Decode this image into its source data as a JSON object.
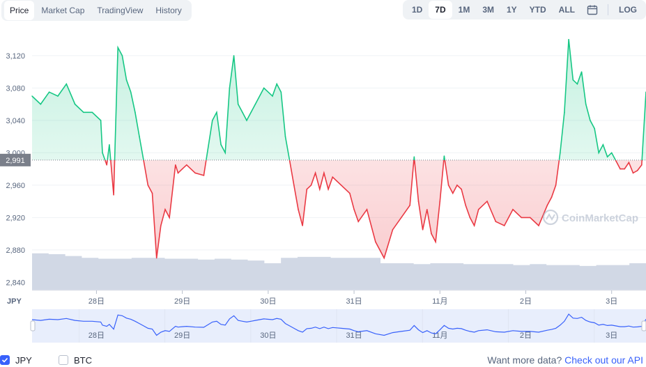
{
  "tabs": [
    "Price",
    "Market Cap",
    "TradingView",
    "History"
  ],
  "active_tab": "Price",
  "ranges": [
    "1D",
    "7D",
    "1M",
    "3M",
    "1Y",
    "YTD",
    "ALL"
  ],
  "active_range": "7D",
  "log_label": "LOG",
  "currency_label": "JPY",
  "current_price_label": "2,991",
  "watermark": "CoinMarketCap",
  "legend": [
    {
      "label": "JPY",
      "checked": true
    },
    {
      "label": "BTC",
      "checked": false
    }
  ],
  "footer": {
    "text": "Want more data?",
    "link": "Check out our API"
  },
  "colors": {
    "up": "#16c784",
    "down": "#ea3943",
    "volume": "#cfd6e4",
    "nav_line": "#3861fb",
    "nav_fill": "#e8eefc"
  },
  "chart_data": {
    "type": "line",
    "baseline": 2991,
    "ylim": [
      2830,
      3150
    ],
    "y_ticks": [
      2840,
      2880,
      2920,
      2960,
      3000,
      3040,
      3080,
      3120
    ],
    "y_tick_labels": [
      "2,840",
      "2,880",
      "2,920",
      "2,960",
      "3,000",
      "3,040",
      "3,080",
      "3,120"
    ],
    "x_tick_labels": [
      "28日",
      "29日",
      "30日",
      "31日",
      "11月",
      "2日",
      "3日"
    ],
    "x_tick_positions": [
      0.75,
      1.75,
      2.75,
      3.75,
      4.75,
      5.75,
      6.75
    ],
    "xlim": [
      0,
      7.15
    ],
    "series": [
      {
        "x": [
          0,
          0.1,
          0.2,
          0.3,
          0.4,
          0.5,
          0.6,
          0.7,
          0.8,
          0.82,
          0.87,
          0.9,
          0.95,
          1.0,
          1.05,
          1.1,
          1.15,
          1.2,
          1.25,
          1.3,
          1.35,
          1.4,
          1.45,
          1.5,
          1.55,
          1.6,
          1.67,
          1.7,
          1.75,
          1.8,
          1.9,
          2.0,
          2.1,
          2.15,
          2.2,
          2.25,
          2.3,
          2.35,
          2.4,
          2.45,
          2.5,
          2.55,
          2.6,
          2.7,
          2.8,
          2.85,
          2.9,
          2.95,
          3.0,
          3.05,
          3.1,
          3.15,
          3.2,
          3.25,
          3.3,
          3.35,
          3.4,
          3.45,
          3.5,
          3.55,
          3.6,
          3.7,
          3.75,
          3.8,
          3.9,
          4.0,
          4.1,
          4.2,
          4.3,
          4.4,
          4.45,
          4.5,
          4.55,
          4.6,
          4.65,
          4.7,
          4.75,
          4.8,
          4.85,
          4.9,
          4.95,
          5.0,
          5.05,
          5.1,
          5.15,
          5.2,
          5.3,
          5.4,
          5.5,
          5.6,
          5.7,
          5.8,
          5.9,
          6.0,
          6.05,
          6.1,
          6.15,
          6.2,
          6.25,
          6.3,
          6.35,
          6.4,
          6.45,
          6.5,
          6.55,
          6.6,
          6.65,
          6.7,
          6.75,
          6.8,
          6.85,
          6.9,
          6.95,
          7.0,
          7.05,
          7.1,
          7.15
        ],
        "values": [
          3070,
          3060,
          3075,
          3070,
          3085,
          3060,
          3050,
          3050,
          3040,
          3000,
          2985,
          3010,
          2948,
          3130,
          3120,
          3090,
          3075,
          3050,
          3020,
          2990,
          2960,
          2950,
          2870,
          2910,
          2930,
          2920,
          2985,
          2975,
          2980,
          2985,
          2975,
          2972,
          3040,
          3050,
          3010,
          3000,
          3080,
          3120,
          3060,
          3050,
          3040,
          3050,
          3060,
          3080,
          3070,
          3085,
          3075,
          3020,
          2990,
          2960,
          2930,
          2910,
          2955,
          2960,
          2975,
          2955,
          2975,
          2955,
          2970,
          2965,
          2960,
          2950,
          2930,
          2915,
          2930,
          2890,
          2870,
          2905,
          2920,
          2935,
          2995,
          2940,
          2905,
          2930,
          2900,
          2890,
          2940,
          2996,
          2960,
          2950,
          2960,
          2955,
          2935,
          2920,
          2910,
          2930,
          2940,
          2915,
          2910,
          2930,
          2920,
          2920,
          2910,
          2935,
          2945,
          2960,
          3000,
          3050,
          3140,
          3090,
          3085,
          3100,
          3060,
          3040,
          3030,
          3000,
          3010,
          2995,
          3000,
          2990,
          2980,
          2980,
          2988,
          2975,
          2978,
          2985,
          3075
        ]
      }
    ],
    "volume": [
      0.82,
      0.8,
      0.76,
      0.72,
      0.7,
      0.7,
      0.72,
      0.72,
      0.7,
      0.7,
      0.68,
      0.7,
      0.68,
      0.66,
      0.6,
      0.72,
      0.74,
      0.74,
      0.72,
      0.72,
      0.72,
      0.6,
      0.6,
      0.58,
      0.6,
      0.6,
      0.58,
      0.58,
      0.58,
      0.56,
      0.58,
      0.56,
      0.56,
      0.54,
      0.56,
      0.56,
      0.6
    ]
  }
}
